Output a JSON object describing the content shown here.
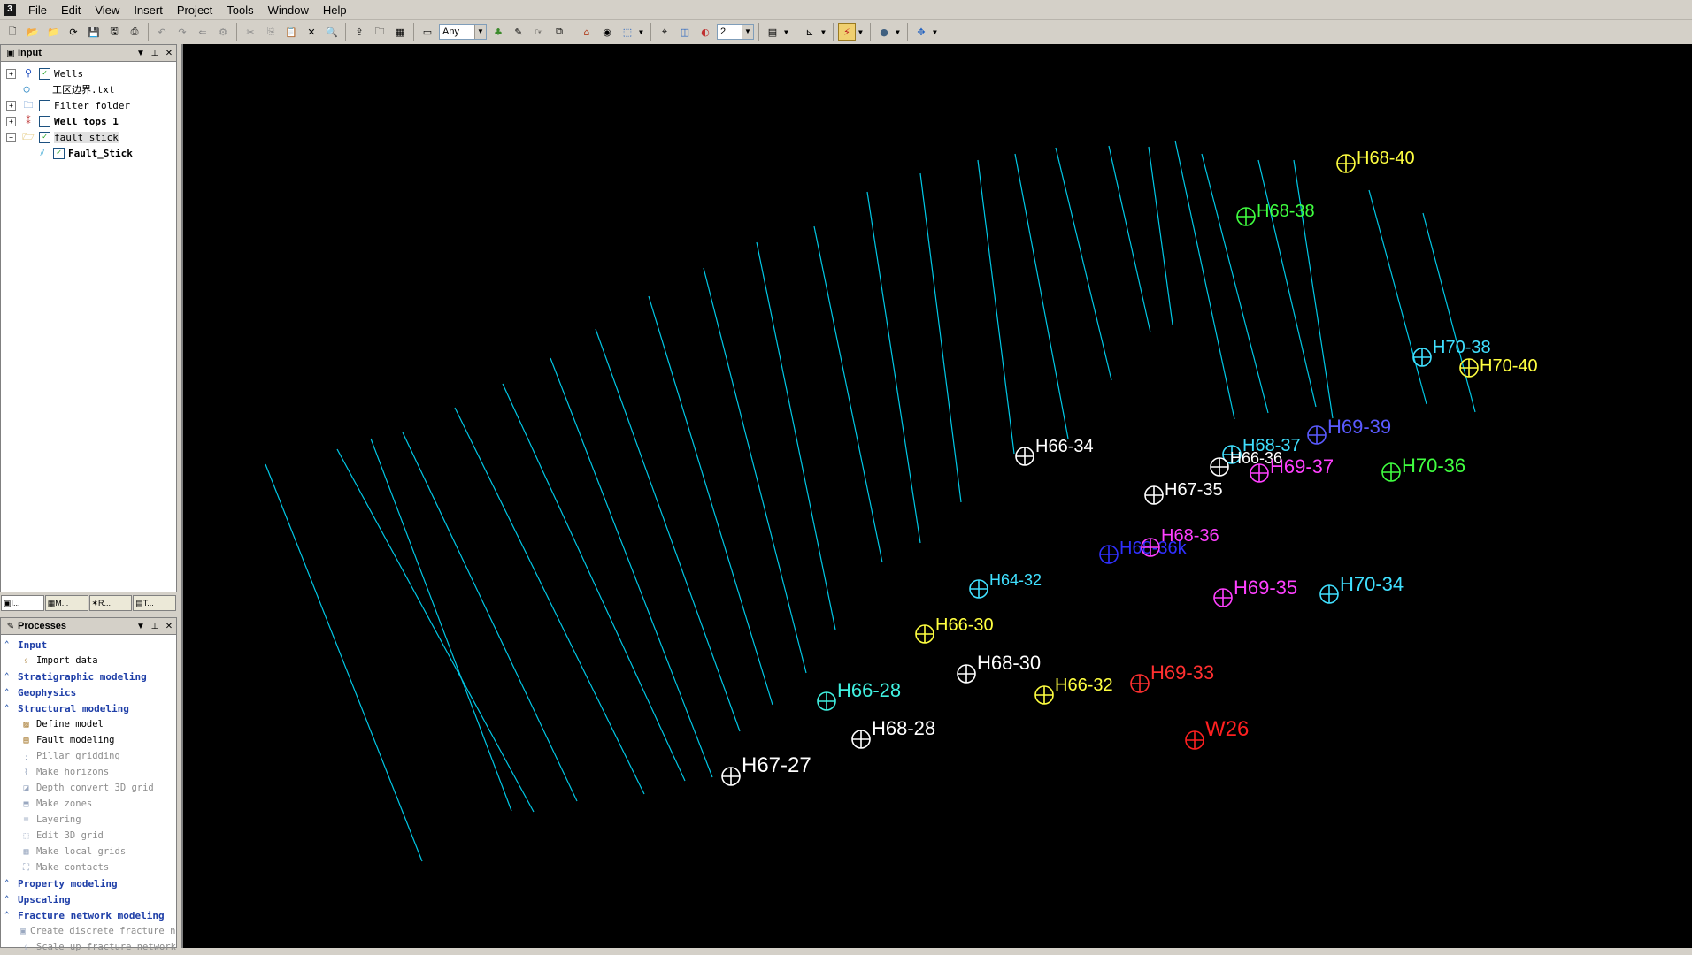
{
  "app": {
    "icon_text": "3"
  },
  "menu": [
    {
      "label": "File"
    },
    {
      "label": "Edit"
    },
    {
      "label": "View"
    },
    {
      "label": "Insert"
    },
    {
      "label": "Project"
    },
    {
      "label": "Tools"
    },
    {
      "label": "Window"
    },
    {
      "label": "Help"
    }
  ],
  "toolbar": {
    "filter_combo": "Any",
    "number_combo": "2"
  },
  "input_panel": {
    "title": "Input",
    "items": [
      {
        "label": "Wells",
        "checked": true,
        "expander": "+",
        "icon": "wells-icon"
      },
      {
        "label": "工区边界.txt",
        "checked": false,
        "expander": "",
        "icon": "polygon-icon"
      },
      {
        "label": "Filter folder",
        "checked": false,
        "expander": "+",
        "icon": "filter-folder-icon"
      },
      {
        "label": "Well tops 1",
        "checked": false,
        "expander": "+",
        "icon": "well-tops-icon"
      },
      {
        "label": "fault stick",
        "checked": true,
        "expander": "−",
        "icon": "folder-icon"
      },
      {
        "label": "Fault_Stick",
        "checked": true,
        "expander": "",
        "icon": "fault-stick-icon"
      }
    ]
  },
  "bottom_tabs": [
    {
      "label": "I..."
    },
    {
      "label": "M..."
    },
    {
      "label": "R..."
    },
    {
      "label": "T..."
    }
  ],
  "process_panel": {
    "title": "Processes",
    "rows": [
      {
        "type": "cat",
        "label": "Input"
      },
      {
        "type": "item",
        "label": "Import data",
        "enabled": true
      },
      {
        "type": "cat",
        "label": "Stratigraphic modeling"
      },
      {
        "type": "cat",
        "label": "Geophysics"
      },
      {
        "type": "cat",
        "label": "Structural modeling"
      },
      {
        "type": "item",
        "label": "Define model",
        "enabled": true
      },
      {
        "type": "item",
        "label": "Fault modeling",
        "enabled": true
      },
      {
        "type": "item",
        "label": "Pillar gridding",
        "enabled": false
      },
      {
        "type": "item",
        "label": "Make horizons",
        "enabled": false
      },
      {
        "type": "item",
        "label": "Depth convert 3D grid",
        "enabled": false
      },
      {
        "type": "item",
        "label": "Make zones",
        "enabled": false
      },
      {
        "type": "item",
        "label": "Layering",
        "enabled": false
      },
      {
        "type": "item",
        "label": "Edit 3D grid",
        "enabled": false
      },
      {
        "type": "item",
        "label": "Make local grids",
        "enabled": false
      },
      {
        "type": "item",
        "label": "Make contacts",
        "enabled": false
      },
      {
        "type": "cat",
        "label": "Property modeling"
      },
      {
        "type": "cat",
        "label": "Upscaling"
      },
      {
        "type": "cat",
        "label": "Fracture network modeling"
      },
      {
        "type": "item",
        "label": "Create discrete fracture ne",
        "enabled": false
      },
      {
        "type": "item",
        "label": "Scale up fracture network",
        "enabled": false
      }
    ]
  },
  "viewer": {
    "background": "#000000",
    "fault_color": "#00c8e6",
    "wells": [
      {
        "name": "H68-40",
        "color": "#ffff40"
      },
      {
        "name": "H68-38",
        "color": "#40ff40"
      },
      {
        "name": "H70-38",
        "color": "#40e0ff"
      },
      {
        "name": "H70-40",
        "color": "#ffff40"
      },
      {
        "name": "H69-39",
        "color": "#5a5aff"
      },
      {
        "name": "H66-34",
        "color": "#ffffff"
      },
      {
        "name": "H68-37",
        "color": "#40e0ff"
      },
      {
        "name": "H66-36",
        "color": "#ffffff"
      },
      {
        "name": "H69-37",
        "color": "#ff40ff"
      },
      {
        "name": "H70-36",
        "color": "#40ff40"
      },
      {
        "name": "H67-35",
        "color": "#ffffff"
      },
      {
        "name": "H68-36k",
        "color": "#3030ff"
      },
      {
        "name": "H68-36",
        "color": "#ff40ff"
      },
      {
        "name": "H64-32",
        "color": "#40e0ff"
      },
      {
        "name": "H69-35",
        "color": "#ff40ff"
      },
      {
        "name": "H70-34",
        "color": "#40e0ff"
      },
      {
        "name": "H66-30",
        "color": "#ffff40"
      },
      {
        "name": "H68-30",
        "color": "#ffffff"
      },
      {
        "name": "H69-33",
        "color": "#ff3030"
      },
      {
        "name": "H66-28",
        "color": "#40f0e0"
      },
      {
        "name": "H66-32",
        "color": "#ffff40"
      },
      {
        "name": "H68-28",
        "color": "#ffffff"
      },
      {
        "name": "W26",
        "color": "#ff2020"
      },
      {
        "name": "H67-27",
        "color": "#ffffff"
      }
    ]
  }
}
